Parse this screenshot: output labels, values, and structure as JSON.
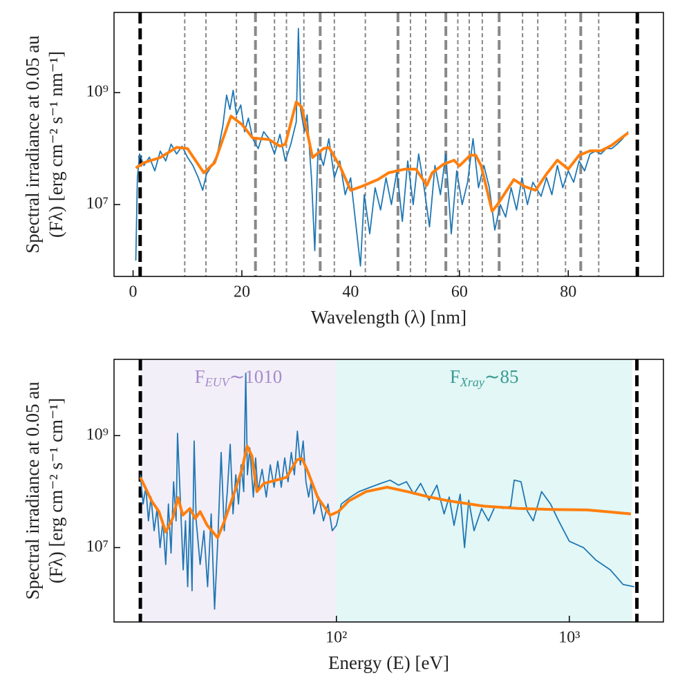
{
  "chart_data": [
    {
      "type": "line",
      "yscale": "log",
      "xscale": "linear",
      "xlabel": "Wavelength (λ) [nm]",
      "ylabel": [
        "Spectral irradiance at 0.05 au",
        "(Fλ) [erg cm⁻² s⁻¹ nm⁻¹]"
      ],
      "xlim": [
        -3.5,
        97.5
      ],
      "ylim": [
        520000,
        27000000000
      ],
      "xticks": [
        0,
        20,
        40,
        60,
        80
      ],
      "yticks": [
        {
          "value": 10000000,
          "label": "10⁷"
        },
        {
          "value": 1000000000,
          "label": "10⁹"
        }
      ],
      "vline_color": "#888888",
      "vlines": [
        {
          "x": 1.3,
          "style": "black"
        },
        {
          "x": 9.5,
          "style": "thin"
        },
        {
          "x": 13.4,
          "style": "thin"
        },
        {
          "x": 19.0,
          "style": "thin"
        },
        {
          "x": 22.5,
          "style": "thick"
        },
        {
          "x": 26.0,
          "style": "thin"
        },
        {
          "x": 28.2,
          "style": "thin"
        },
        {
          "x": 31.4,
          "style": "thin"
        },
        {
          "x": 34.4,
          "style": "thick"
        },
        {
          "x": 37.0,
          "style": "thin"
        },
        {
          "x": 42.7,
          "style": "thin"
        },
        {
          "x": 48.7,
          "style": "thick"
        },
        {
          "x": 51.0,
          "style": "thin"
        },
        {
          "x": 53.8,
          "style": "thin"
        },
        {
          "x": 57.5,
          "style": "thick"
        },
        {
          "x": 59.7,
          "style": "thin"
        },
        {
          "x": 61.8,
          "style": "thin"
        },
        {
          "x": 64.2,
          "style": "thin"
        },
        {
          "x": 67.3,
          "style": "thick"
        },
        {
          "x": 71.6,
          "style": "thin"
        },
        {
          "x": 74.4,
          "style": "thin"
        },
        {
          "x": 79.5,
          "style": "thin"
        },
        {
          "x": 82.3,
          "style": "thick"
        },
        {
          "x": 85.6,
          "style": "thin"
        },
        {
          "x": 92.7,
          "style": "black"
        }
      ],
      "regions": [],
      "series": [
        {
          "color": "#1f77b4",
          "width": 1.8,
          "x": [
            0.5,
            0.8,
            1.2,
            2,
            3,
            4,
            5,
            6,
            7,
            8,
            9,
            10,
            11,
            12,
            12.8,
            13.5,
            14.5,
            15.5,
            16.5,
            17.2,
            17.8,
            18.4,
            19,
            19.8,
            20.5,
            21.2,
            22,
            23,
            24,
            25,
            26,
            27,
            28,
            29,
            30,
            30.4,
            30.8,
            31.5,
            32,
            32.8,
            33.4,
            34,
            35,
            36,
            37,
            38,
            39,
            40,
            41,
            41.8,
            42.5,
            43.5,
            44.5,
            45.5,
            46.5,
            47.5,
            48.5,
            49.5,
            50.5,
            51.5,
            52.5,
            53.5,
            54.5,
            55.5,
            56.5,
            57.5,
            58.5,
            59.5,
            60.5,
            61.5,
            62.5,
            63.5,
            64.5,
            65.5,
            66.5,
            67.5,
            68.5,
            69.5,
            70.5,
            71.5,
            72.5,
            73.5,
            75,
            76,
            77,
            78,
            79,
            80,
            81,
            82,
            83,
            84,
            85,
            86,
            87,
            88,
            89,
            90,
            91
          ],
          "values": [
            1000000,
            30000000,
            80000000,
            50000000,
            70000000,
            40000000,
            90000000,
            60000000,
            120000000,
            80000000,
            110000000,
            70000000,
            50000000,
            30000000,
            18000000,
            35000000,
            50000000,
            80000000,
            250000000,
            900000000,
            500000000,
            1100000000,
            400000000,
            600000000,
            200000000,
            350000000,
            150000000,
            100000000,
            200000000,
            150000000,
            80000000,
            180000000,
            60000000,
            120000000,
            300000000,
            14000000000,
            500000000,
            200000000,
            400000000,
            30000000,
            1500000,
            100000000,
            50000000,
            150000000,
            30000000,
            60000000,
            15000000,
            30000000,
            4000000,
            800000,
            15000000,
            3000000,
            20000000,
            8000000,
            30000000,
            10000000,
            40000000,
            5000000,
            60000000,
            10000000,
            80000000,
            20000000,
            4000000,
            50000000,
            15000000,
            80000000,
            3000000,
            40000000,
            10000000,
            25000000,
            150000000,
            20000000,
            50000000,
            20000000,
            3500000,
            10000000,
            6000000,
            20000000,
            8000000,
            30000000,
            10000000,
            25000000,
            14000000,
            30000000,
            15000000,
            50000000,
            20000000,
            40000000,
            25000000,
            60000000,
            40000000,
            80000000,
            90000000,
            80000000,
            100000000,
            100000000,
            120000000,
            150000000,
            200000000
          ]
        },
        {
          "color": "#ff7f0e",
          "width": 4,
          "x": [
            0.5,
            2,
            5,
            8,
            10,
            13,
            15,
            18,
            20,
            22,
            25,
            27,
            28,
            30,
            31,
            32,
            33,
            35,
            36,
            38,
            40,
            42,
            45,
            47,
            50,
            52,
            54,
            55,
            57,
            59,
            60,
            62,
            63,
            64,
            66,
            67,
            70,
            72,
            74,
            76,
            78,
            80,
            82,
            84,
            86,
            88,
            91
          ],
          "values": [
            45000000,
            56000000,
            69000000,
            105000000,
            100000000,
            37000000,
            56000000,
            380000000,
            270000000,
            155000000,
            145000000,
            110000000,
            120000000,
            680000000,
            550000000,
            200000000,
            69000000,
            100000000,
            105000000,
            49000000,
            18000000,
            21000000,
            28000000,
            37000000,
            43000000,
            43000000,
            22000000,
            37000000,
            52000000,
            62000000,
            49000000,
            76000000,
            76000000,
            49000000,
            7600000,
            10000000,
            28000000,
            21000000,
            18000000,
            35000000,
            62000000,
            43000000,
            76000000,
            91000000,
            91000000,
            115000000,
            190000000
          ]
        }
      ]
    },
    {
      "type": "line",
      "yscale": "log",
      "xscale": "log",
      "xlabel": "Energy (E) [eV]",
      "ylabel": [
        "Spectral irradiance at 0.05 au",
        "(Fλ) [erg cm⁻² s⁻¹ cm⁻¹]"
      ],
      "xlim": [
        11.1,
        2535
      ],
      "ylim": [
        470000,
        23000000000
      ],
      "xticks": [
        {
          "value": 100,
          "label": "10²"
        },
        {
          "value": 1000,
          "label": "10³"
        }
      ],
      "yticks": [
        {
          "value": 10000000,
          "label": "10⁷"
        },
        {
          "value": 1000000000,
          "label": "10⁹"
        }
      ],
      "vline_color": "#888888",
      "vlines": [
        {
          "x": 14.4,
          "style": "black"
        },
        {
          "x": 1950,
          "style": "black"
        }
      ],
      "regions": [
        {
          "x": [
            14.4,
            100
          ],
          "color": "#f3eff8",
          "label_color": "#a58bcb",
          "label": "F",
          "sub": "EUV",
          "text": "∼1010"
        },
        {
          "x": [
            100,
            1860
          ],
          "color": "#e2f7f6",
          "label_color": "#3a9a92",
          "label": "F",
          "sub": "Xray",
          "text": "∼85"
        }
      ],
      "series": [
        {
          "color": "#1f77b4",
          "width": 1.8,
          "x": [
            14.4,
            14.8,
            15.2,
            15.6,
            16,
            16.5,
            17,
            17.5,
            18,
            18.5,
            19,
            19.5,
            20,
            20.5,
            20.8,
            21.5,
            22,
            22.5,
            23,
            23.5,
            24,
            24.5,
            25,
            26,
            27,
            28,
            29,
            30,
            31,
            32,
            33,
            34,
            35,
            36,
            37,
            38,
            39,
            40,
            40.8,
            41.5,
            42.5,
            44,
            45,
            46,
            48,
            50,
            52,
            54,
            56,
            58,
            60,
            62,
            64,
            66,
            68,
            70,
            72,
            74,
            76,
            78,
            80,
            84,
            88,
            92,
            96,
            100,
            105,
            115,
            125,
            140,
            155,
            170,
            185,
            200,
            215,
            230,
            250,
            270,
            290,
            305,
            320,
            340,
            355,
            370,
            390,
            420,
            450,
            480,
            520,
            560,
            580,
            620,
            660,
            700,
            760,
            830,
            900,
            1000,
            1150,
            1300,
            1500,
            1700,
            1900
          ],
          "values": [
            200000000,
            60000000,
            120000000,
            30000000,
            80000000,
            20000000,
            50000000,
            10000000,
            30000000,
            5000000,
            60000000,
            8000000,
            150000000,
            30000000,
            1100000000,
            40000000,
            4000000,
            30000000,
            2000000,
            50000000,
            1700000,
            800000000,
            30000000,
            5000000,
            20000000,
            2000000,
            40000000,
            800000,
            15000000,
            500000000,
            20000000,
            100000000,
            700000000,
            40000000,
            200000000,
            60000000,
            300000000,
            100000000,
            13000000000,
            200000000,
            600000000,
            80000000,
            400000000,
            100000000,
            250000000,
            80000000,
            300000000,
            120000000,
            350000000,
            120000000,
            400000000,
            150000000,
            500000000,
            200000000,
            1200000000,
            300000000,
            800000000,
            150000000,
            80000000,
            150000000,
            40000000,
            80000000,
            30000000,
            60000000,
            20000000,
            25000000,
            60000000,
            80000000,
            100000000,
            120000000,
            140000000,
            160000000,
            130000000,
            150000000,
            90000000,
            140000000,
            70000000,
            130000000,
            40000000,
            80000000,
            25000000,
            90000000,
            10000000,
            70000000,
            20000000,
            50000000,
            30000000,
            55000000,
            50000000,
            55000000,
            160000000,
            150000000,
            45000000,
            30000000,
            100000000,
            60000000,
            30000000,
            13000000,
            10000000,
            6000000,
            4000000,
            2200000,
            2000000
          ]
        },
        {
          "color": "#ff7f0e",
          "width": 4,
          "x": [
            14.4,
            15.1,
            16.1,
            17.3,
            18.5,
            19.8,
            20.9,
            21.9,
            23.5,
            24.8,
            26.0,
            27.9,
            30.9,
            33.0,
            36.6,
            39.2,
            41.4,
            43.4,
            45.6,
            48.8,
            55.2,
            61.1,
            67.8,
            71.1,
            75.0,
            83.2,
            94.0,
            102,
            113,
            134,
            165,
            202,
            248,
            305,
            429,
            603,
            849,
            1194,
            1837
          ],
          "values": [
            180000000,
            120000000,
            68000000,
            44000000,
            19000000,
            33000000,
            78000000,
            38000000,
            50000000,
            33000000,
            44000000,
            25000000,
            15000000,
            29000000,
            100000000,
            240000000,
            650000000,
            430000000,
            100000000,
            140000000,
            160000000,
            180000000,
            370000000,
            390000000,
            240000000,
            78000000,
            38000000,
            44000000,
            68000000,
            100000000,
            120000000,
            100000000,
            81000000,
            68000000,
            55000000,
            50000000,
            48000000,
            47000000,
            40000000
          ]
        }
      ]
    }
  ]
}
